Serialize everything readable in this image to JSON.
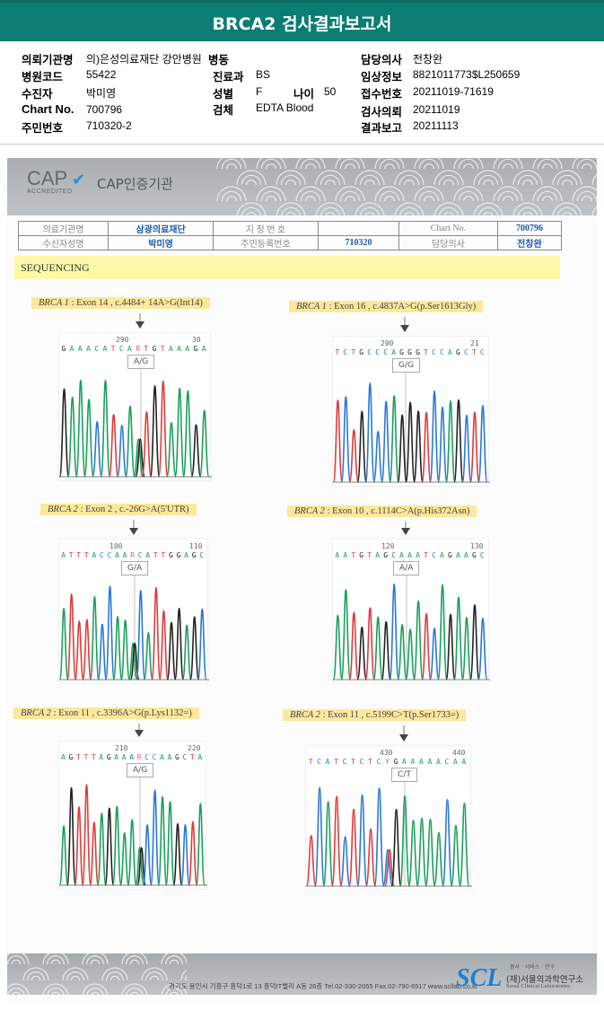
{
  "header": {
    "title": "BRCA2 검사결과보고서"
  },
  "info": {
    "hospital_label": "의뢰기관명",
    "hospital_value": "의)은성의료재단 강안병원",
    "ward_label": "병동",
    "doctor_label": "담당의사",
    "doctor_value": "전창완",
    "code_label": "병원코드",
    "code_value": "55422",
    "dept_label": "진료과",
    "dept_value": "BS",
    "clinical_label": "임상정보",
    "clinical_value": "8821011773$L250659",
    "patient_label": "수진자",
    "patient_value": "박미영",
    "sex_label": "성별",
    "sex_value": "F",
    "age_label": "나이",
    "age_value": "50",
    "receipt_label": "접수번호",
    "receipt_value": "20211019-71619",
    "chart_label": "Chart No.",
    "chart_value": "700796",
    "specimen_label": "검체",
    "specimen_value": "EDTA Blood",
    "request_label": "검사의뢰",
    "request_value": "20211019",
    "id_label": "주민번호",
    "id_value": "710320-2",
    "report_label": "결과보고",
    "report_value": "20211113"
  },
  "scan": {
    "cap_logo": "CAP",
    "cap_sub": "ACCREDITED",
    "cap_title": "CAP인증기관",
    "table": {
      "r1": [
        "의료기관명",
        "삼광의료재단",
        "지 정 번 호",
        "",
        "Chart No.",
        "700796"
      ],
      "r2": [
        "수신자성명",
        "박미영",
        "주민등록번호",
        "710320",
        "담당의사",
        "전창완"
      ]
    },
    "section": "SEQUENCING",
    "variants": [
      {
        "gene": "BRCA 1",
        "desc": " : Exon 14 , c.4484+ 14A>G(Int14)",
        "pos1": "290",
        "pos2": "30",
        "seq": "GAAACATCARTGTAAAGA",
        "genotype": "A/G"
      },
      {
        "gene": "BRCA 1",
        "desc": " : Exon 16 , c.4837A>G(p.Ser1613Gly)",
        "pos1": "200",
        "pos2": "21",
        "seq": "TCTGCCCAGGGTCCAGCTC",
        "genotype": "G/G"
      },
      {
        "gene": "BRCA 2",
        "desc": " : Exon 2 , c.-26G>A(5'UTR)",
        "pos1": "100",
        "pos2": "110",
        "seq": "ATTTACCAARCATTGGAGC",
        "genotype": "G/A"
      },
      {
        "gene": "BRCA 2",
        "desc": " : Exon 10 , c.1114C>A(p.His372Asn)",
        "pos1": "120",
        "pos2": "130",
        "seq": "AATGTAGCAAATCAGAAGC",
        "genotype": "A/A"
      },
      {
        "gene": "BRCA 2",
        "desc": " : Exon 11 , c.3396A>G(p.Lys1132=)",
        "pos1": "210",
        "pos2": "220",
        "seq": "AGTTTAGAAARCCAAGCTA",
        "genotype": "A/G"
      },
      {
        "gene": "BRCA 2",
        "desc": " : Exon 11 , c.5199C>T(p.Ser1733=)",
        "pos1": "430",
        "pos2": "440",
        "seq": "TCATCTCTCYGAAAAACAA",
        "genotype": "C/T"
      }
    ],
    "footer": {
      "address": "경기도 용인시 기흥구 흥덕1로 13 흥덕IT밸리 A동 26층  Tel.02-330-2055  Fax.02-790-6517  www.scllab.co.kr",
      "logo": "SCL",
      "tagline": "봉사 · 서비스 · 연구",
      "org_ko": "(재)서울의과학연구소",
      "org_en": "Seoul Clinical Laboratories"
    }
  },
  "colors": {
    "A": "#1aa05a",
    "C": "#2a78d8",
    "G": "#222222",
    "T": "#e23a3a",
    "R": "#e05a8a",
    "Y": "#e05a8a",
    "header": "#0b7d72"
  }
}
